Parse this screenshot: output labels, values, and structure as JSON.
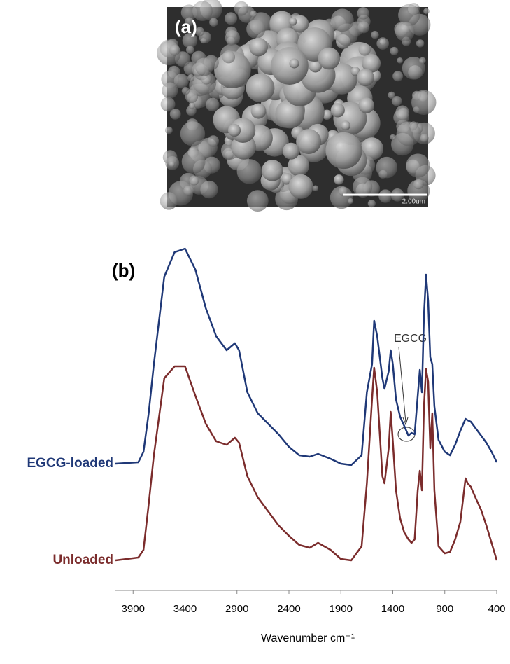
{
  "image": {
    "label": "(a)",
    "scale_bar": "2.00um"
  },
  "chart_data": {
    "type": "line",
    "label": "(b)",
    "x_label": "Wavenumber cm⁻¹",
    "annotation": "EGCG",
    "x": [
      4070,
      3850,
      3800,
      3750,
      3700,
      3600,
      3500,
      3400,
      3300,
      3200,
      3100,
      3000,
      2920,
      2880,
      2800,
      2700,
      2600,
      2500,
      2400,
      2300,
      2200,
      2120,
      2000,
      1900,
      1800,
      1700,
      1650,
      1600,
      1580,
      1550,
      1500,
      1480,
      1440,
      1420,
      1400,
      1370,
      1330,
      1290,
      1250,
      1220,
      1190,
      1160,
      1140,
      1120,
      1100,
      1080,
      1060,
      1040,
      1020,
      1000,
      960,
      900,
      850,
      800,
      750,
      700,
      680,
      650,
      600,
      550,
      500,
      450,
      400
    ],
    "series": [
      {
        "name": "EGCG-loaded",
        "color": "#1f3877",
        "values": [
          158,
          160,
          175,
          230,
          300,
          425,
          460,
          465,
          435,
          380,
          340,
          320,
          330,
          320,
          260,
          230,
          215,
          200,
          182,
          170,
          168,
          172,
          165,
          158,
          156,
          170,
          260,
          300,
          362,
          340,
          280,
          265,
          290,
          320,
          300,
          250,
          225,
          212,
          198,
          202,
          200,
          255,
          292,
          260,
          370,
          428,
          390,
          310,
          300,
          240,
          192,
          175,
          170,
          185,
          205,
          222,
          220,
          218,
          208,
          198,
          188,
          175,
          160
        ]
      },
      {
        "name": "Unloaded",
        "color": "#7b2c2c",
        "values": [
          20,
          24,
          35,
          100,
          170,
          280,
          297,
          297,
          255,
          215,
          190,
          185,
          195,
          188,
          140,
          110,
          90,
          70,
          55,
          42,
          38,
          45,
          35,
          22,
          20,
          40,
          130,
          250,
          295,
          260,
          140,
          130,
          180,
          232,
          190,
          120,
          80,
          60,
          50,
          45,
          50,
          120,
          148,
          120,
          240,
          293,
          275,
          180,
          230,
          120,
          40,
          30,
          32,
          50,
          75,
          137,
          130,
          125,
          108,
          92,
          70,
          45,
          20
        ]
      }
    ],
    "xlim": [
      4070,
      400
    ],
    "ylim": [
      0,
      480
    ],
    "xticks": [
      3900,
      3400,
      2900,
      2400,
      1900,
      1400,
      900,
      400
    ]
  }
}
